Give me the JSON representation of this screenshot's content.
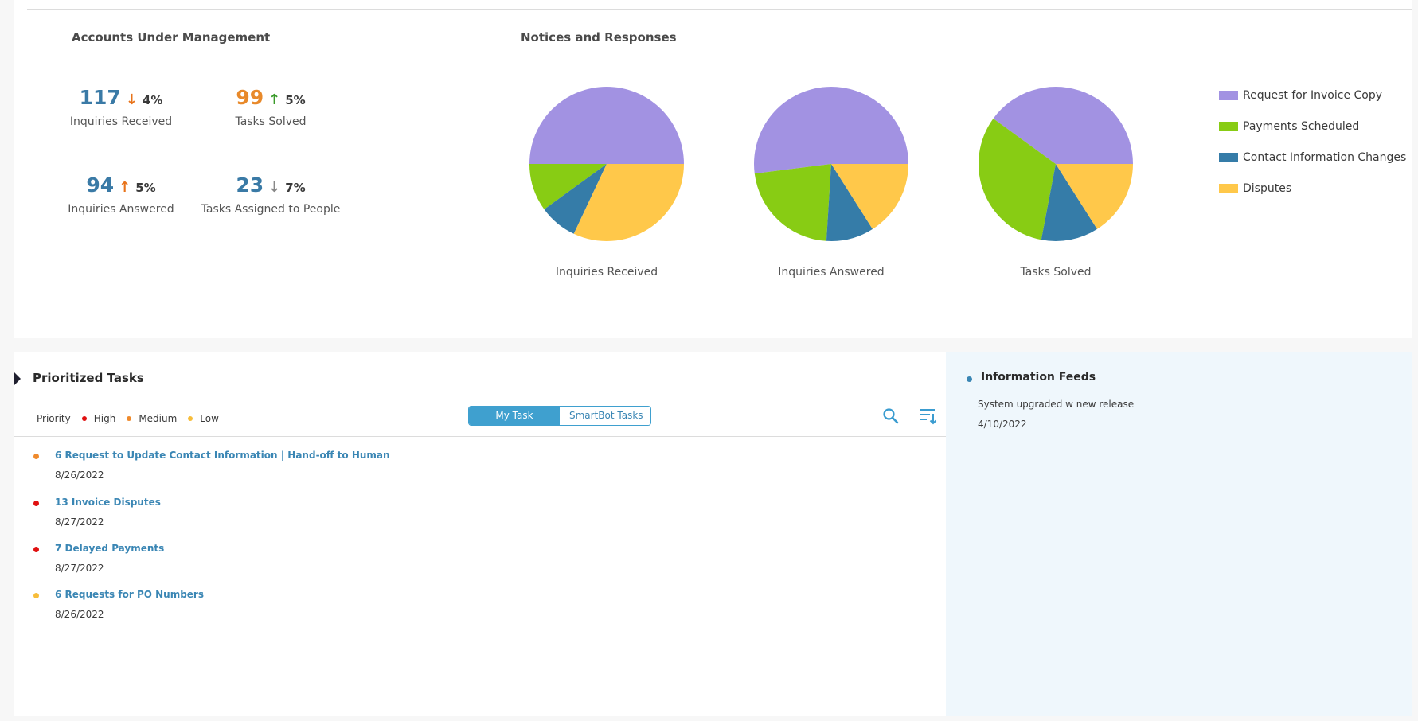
{
  "accounts": {
    "title": "Accounts Under Management",
    "kpis": [
      {
        "value": "117",
        "arrow": "↓",
        "change": "4%",
        "label": "Inquiries Received",
        "value_color": "#3a7aa6",
        "arrow_color": "#e8731a"
      },
      {
        "value": "99",
        "arrow": "↑",
        "change": "5%",
        "label": "Tasks Solved",
        "value_color": "#e8892a",
        "arrow_color": "#3a9a2a"
      },
      {
        "value": "94",
        "arrow": "↑",
        "change": "5%",
        "label": "Inquiries Answered",
        "value_color": "#3a7aa6",
        "arrow_color": "#e8731a"
      },
      {
        "value": "23",
        "arrow": "↓",
        "change": "7%",
        "label": "Tasks Assigned to People",
        "value_color": "#3a7aa6",
        "arrow_color": "#888888"
      }
    ]
  },
  "notices": {
    "title": "Notices and Responses",
    "legend": [
      {
        "label": "Request for Invoice Copy",
        "color": "#a292e2"
      },
      {
        "label": "Payments Scheduled",
        "color": "#88cc14"
      },
      {
        "label": "Contact Information Changes",
        "color": "#357ca8"
      },
      {
        "label": "Disputes",
        "color": "#ffc84a"
      }
    ]
  },
  "chart_data": [
    {
      "type": "pie",
      "title": "Inquiries Received",
      "labels": [
        "Request for Invoice Copy",
        "Payments Scheduled",
        "Contact Information Changes",
        "Disputes"
      ],
      "values": [
        50,
        10,
        8,
        32
      ],
      "colors": [
        "#a292e2",
        "#88cc14",
        "#357ca8",
        "#ffc84a"
      ]
    },
    {
      "type": "pie",
      "title": "Inquiries Answered",
      "labels": [
        "Request for Invoice Copy",
        "Payments Scheduled",
        "Contact Information Changes",
        "Disputes"
      ],
      "values": [
        52,
        22,
        10,
        16
      ],
      "colors": [
        "#a292e2",
        "#88cc14",
        "#357ca8",
        "#ffc84a"
      ]
    },
    {
      "type": "pie",
      "title": "Tasks Solved",
      "labels": [
        "Request for Invoice Copy",
        "Payments Scheduled",
        "Contact Information Changes",
        "Disputes"
      ],
      "values": [
        40,
        32,
        12,
        16
      ],
      "colors": [
        "#a292e2",
        "#88cc14",
        "#357ca8",
        "#ffc84a"
      ]
    }
  ],
  "tasks": {
    "title": "Prioritized Tasks",
    "priority_label": "Priority",
    "priorities": [
      {
        "label": "High",
        "color": "#e01010"
      },
      {
        "label": "Medium",
        "color": "#ef8a2c"
      },
      {
        "label": "Low",
        "color": "#f7bd3a"
      }
    ],
    "toggle": {
      "active": "My Task",
      "inactive": "SmartBot Tasks"
    },
    "search_icon": "search-icon",
    "sort_icon": "sort-icon",
    "items": [
      {
        "title": "6 Request to Update Contact Information | Hand-off to Human",
        "date": "8/26/2022",
        "color": "#ef8a2c"
      },
      {
        "title": "13 Invoice Disputes",
        "date": "8/27/2022",
        "color": "#e01010"
      },
      {
        "title": "7 Delayed Payments",
        "date": "8/27/2022",
        "color": "#e01010"
      },
      {
        "title": "6 Requests for PO Numbers",
        "date": "8/26/2022",
        "color": "#f7bd3a"
      }
    ]
  },
  "feeds": {
    "title": "Information Feeds",
    "items": [
      {
        "text": "System upgraded w new release",
        "date": "4/10/2022"
      }
    ]
  }
}
